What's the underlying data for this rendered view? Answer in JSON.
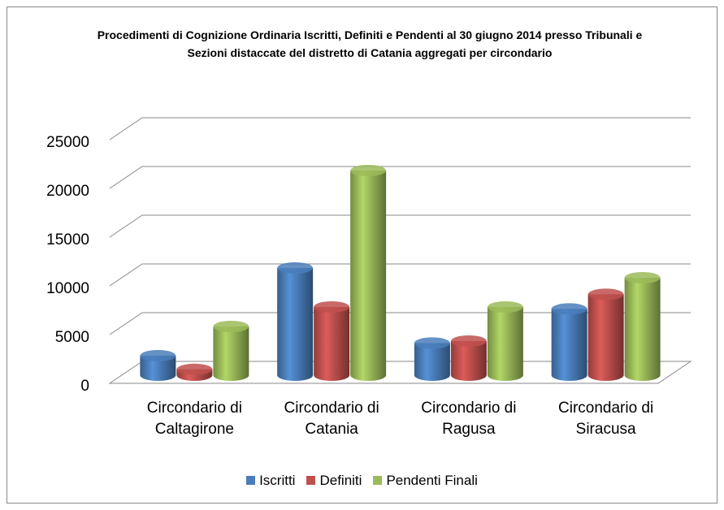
{
  "chart_data": {
    "type": "bar3d",
    "title": "Procedimenti di Cognizione Ordinaria Iscritti, Definiti e Pendenti al 30 giugno 2014 presso Tribunali e Sezioni distaccate  del distretto di Catania aggregati per circondario",
    "categories": [
      "Circondario di Caltagirone",
      "Circondario di Catania",
      "Circondario di Ragusa",
      "Circondario di Siracusa"
    ],
    "series": [
      {
        "name": "Iscritti",
        "color": "#4a7ebb",
        "values": [
          2000,
          11000,
          3300,
          6800
        ]
      },
      {
        "name": "Definiti",
        "color": "#c0504d",
        "values": [
          600,
          7000,
          3500,
          8300
        ]
      },
      {
        "name": "Pendenti Finali",
        "color": "#9bbb59",
        "values": [
          5000,
          21000,
          7000,
          10000
        ]
      }
    ],
    "ylim": [
      0,
      25000
    ],
    "yticks": [
      0,
      5000,
      10000,
      15000,
      20000,
      25000
    ],
    "grid": true,
    "legend": "bottom"
  }
}
